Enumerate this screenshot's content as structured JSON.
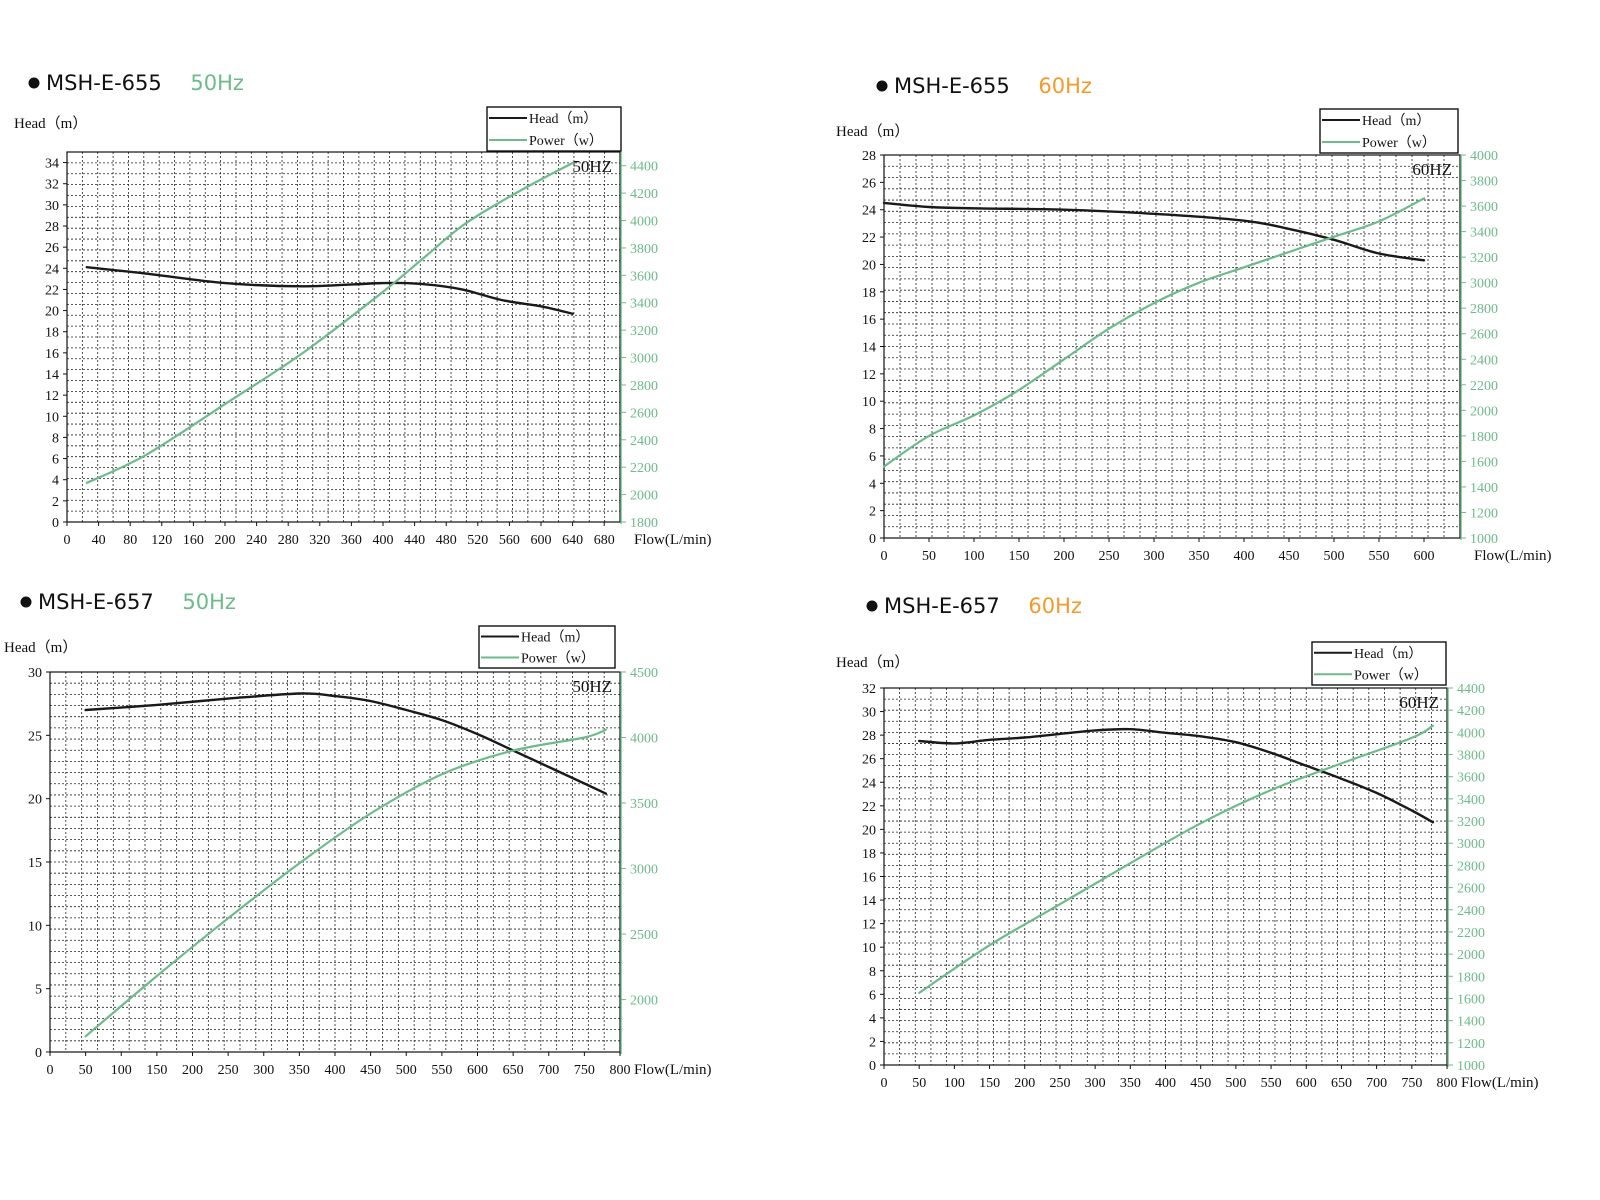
{
  "colors": {
    "head": "#1a1a1a",
    "power": "#6dbb8a",
    "accent50": "#6dbb8a",
    "accent60": "#f59a2a"
  },
  "chart_data": [
    {
      "type": "line",
      "title": {
        "model": "MSH-E-655",
        "freq": "50Hz"
      },
      "freq_color": "#6dbb8a",
      "xlabel": "Flow(L/min)",
      "ylabel": "Head（m）",
      "hz_label": "50HZ",
      "xlim": [
        0,
        700
      ],
      "xticks": [
        0,
        40,
        80,
        120,
        160,
        200,
        240,
        280,
        320,
        360,
        400,
        440,
        480,
        520,
        560,
        600,
        640,
        680
      ],
      "ylim": [
        0,
        35
      ],
      "yticks": [
        0,
        2,
        4,
        6,
        8,
        10,
        12,
        14,
        16,
        18,
        20,
        22,
        24,
        26,
        28,
        30,
        32,
        34
      ],
      "y2lim": [
        1800,
        4500
      ],
      "y2ticks": [
        1800,
        2000,
        2200,
        2400,
        2600,
        2800,
        3000,
        3200,
        3400,
        3600,
        3800,
        4000,
        4200,
        4400
      ],
      "grid": true,
      "legend_position": "top-right",
      "series": [
        {
          "name": "Head（m）",
          "axis": "left",
          "x": [
            25,
            100,
            200,
            300,
            400,
            450,
            500,
            550,
            600,
            640
          ],
          "y": [
            24.1,
            23.5,
            22.6,
            22.3,
            22.6,
            22.5,
            22.0,
            21.0,
            20.4,
            19.7
          ]
        },
        {
          "name": "Power（w）",
          "axis": "right",
          "x": [
            25,
            100,
            200,
            300,
            400,
            450,
            500,
            550,
            600,
            640
          ],
          "y": [
            2085,
            2290,
            2660,
            3040,
            3480,
            3720,
            3960,
            4140,
            4300,
            4420
          ]
        }
      ]
    },
    {
      "type": "line",
      "title": {
        "model": "MSH-E-655",
        "freq": "60Hz"
      },
      "freq_color": "#f59a2a",
      "xlabel": "Flow(L/min)",
      "ylabel": "Head（m）",
      "hz_label": "60HZ",
      "xlim": [
        0,
        640
      ],
      "xticks": [
        0,
        50,
        100,
        150,
        200,
        250,
        300,
        350,
        400,
        450,
        500,
        550,
        600
      ],
      "ylim": [
        0,
        28
      ],
      "yticks": [
        0,
        2,
        4,
        6,
        8,
        10,
        12,
        14,
        16,
        18,
        20,
        22,
        24,
        26,
        28
      ],
      "y2lim": [
        1000,
        4000
      ],
      "y2ticks": [
        1000,
        1200,
        1400,
        1600,
        1800,
        2000,
        2200,
        2400,
        2600,
        2800,
        3000,
        3200,
        3400,
        3600,
        3800,
        4000
      ],
      "grid": true,
      "legend_position": "top-right",
      "series": [
        {
          "name": "Head（m）",
          "axis": "left",
          "x": [
            0,
            50,
            100,
            200,
            300,
            400,
            450,
            500,
            550,
            600
          ],
          "y": [
            24.5,
            24.2,
            24.1,
            24.0,
            23.7,
            23.2,
            22.6,
            21.8,
            20.8,
            20.3
          ]
        },
        {
          "name": "Power（w）",
          "axis": "right",
          "x": [
            0,
            50,
            100,
            150,
            200,
            250,
            300,
            350,
            400,
            450,
            500,
            550,
            600
          ],
          "y": [
            1560,
            1800,
            1960,
            2160,
            2400,
            2640,
            2840,
            3000,
            3120,
            3240,
            3360,
            3480,
            3660
          ]
        }
      ]
    },
    {
      "type": "line",
      "title": {
        "model": "MSH-E-657",
        "freq": "50Hz"
      },
      "freq_color": "#6dbb8a",
      "xlabel": "Flow(L/min)",
      "ylabel": "Head（m）",
      "hz_label": "50HZ",
      "xlim": [
        0,
        800
      ],
      "xticks": [
        0,
        50,
        100,
        150,
        200,
        250,
        300,
        350,
        400,
        450,
        500,
        550,
        600,
        650,
        700,
        750,
        800
      ],
      "ylim": [
        0,
        30
      ],
      "yticks": [
        0,
        5,
        10,
        15,
        20,
        25,
        30
      ],
      "y2lim": [
        1600,
        4500
      ],
      "y2ticks": [
        2000,
        2500,
        3000,
        3500,
        4000,
        4500
      ],
      "grid": true,
      "legend_position": "top-right",
      "series": [
        {
          "name": "Head（m）",
          "axis": "left",
          "x": [
            50,
            150,
            250,
            350,
            400,
            450,
            500,
            550,
            600,
            650,
            700,
            750,
            780
          ],
          "y": [
            27.0,
            27.4,
            27.9,
            28.3,
            28.1,
            27.7,
            27.0,
            26.2,
            25.1,
            23.8,
            22.5,
            21.2,
            20.4
          ]
        },
        {
          "name": "Power（w）",
          "axis": "right",
          "x": [
            50,
            150,
            250,
            350,
            450,
            550,
            650,
            750,
            780
          ],
          "y": [
            1720,
            2180,
            2620,
            3040,
            3420,
            3720,
            3900,
            4000,
            4060
          ]
        }
      ]
    },
    {
      "type": "line",
      "title": {
        "model": "MSH-E-657",
        "freq": "60Hz"
      },
      "freq_color": "#f59a2a",
      "xlabel": "Flow(L/min)",
      "ylabel": "Head（m）",
      "hz_label": "60HZ",
      "xlim": [
        0,
        800
      ],
      "xticks": [
        0,
        50,
        100,
        150,
        200,
        250,
        300,
        350,
        400,
        450,
        500,
        550,
        600,
        650,
        700,
        750,
        800
      ],
      "ylim": [
        0,
        32
      ],
      "yticks": [
        0,
        2,
        4,
        6,
        8,
        10,
        12,
        14,
        16,
        18,
        20,
        22,
        24,
        26,
        28,
        30,
        32
      ],
      "y2lim": [
        1000,
        4400
      ],
      "y2ticks": [
        1000,
        1200,
        1400,
        1600,
        1800,
        2000,
        2200,
        2400,
        2600,
        2800,
        3000,
        3200,
        3400,
        3600,
        3800,
        4000,
        4200,
        4400
      ],
      "grid": true,
      "legend_position": "top-right",
      "series": [
        {
          "name": "Head（m）",
          "axis": "left",
          "x": [
            50,
            100,
            150,
            200,
            250,
            300,
            350,
            400,
            450,
            500,
            550,
            600,
            650,
            700,
            750,
            780
          ],
          "y": [
            27.5,
            27.3,
            27.6,
            27.8,
            28.1,
            28.4,
            28.5,
            28.2,
            27.9,
            27.4,
            26.5,
            25.4,
            24.3,
            23.1,
            21.6,
            20.6
          ]
        },
        {
          "name": "Power（w）",
          "axis": "right",
          "x": [
            50,
            150,
            250,
            350,
            450,
            550,
            650,
            750,
            780
          ],
          "y": [
            1650,
            2080,
            2450,
            2820,
            3180,
            3480,
            3720,
            3950,
            4060
          ]
        }
      ]
    }
  ]
}
